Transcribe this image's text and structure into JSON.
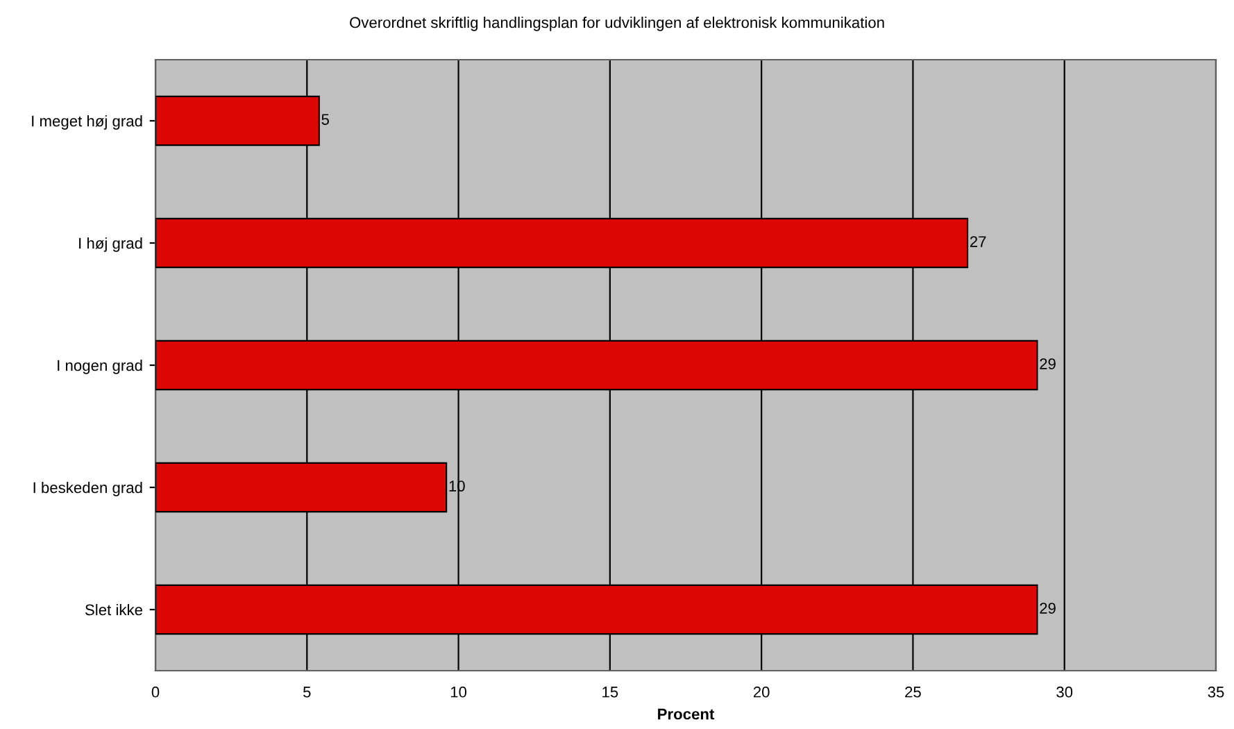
{
  "chart_data": {
    "type": "bar",
    "orientation": "horizontal",
    "title": "Overordnet skriftlig handlingsplan for udviklingen af elektronisk kommunikation",
    "xlabel": "Procent",
    "categories": [
      "I meget høj grad",
      "I høj grad",
      "I nogen grad",
      "I beskeden grad",
      "Slet ikke"
    ],
    "values": [
      5.4,
      26.8,
      29.1,
      9.6,
      29.1
    ],
    "value_labels": [
      "5",
      "27",
      "29",
      "10",
      "29"
    ],
    "color": "#dd0806",
    "xlim": [
      0,
      35
    ],
    "xticks": [
      0,
      5,
      10,
      15,
      20,
      25,
      30,
      35
    ],
    "grid": "x",
    "legend": false
  }
}
